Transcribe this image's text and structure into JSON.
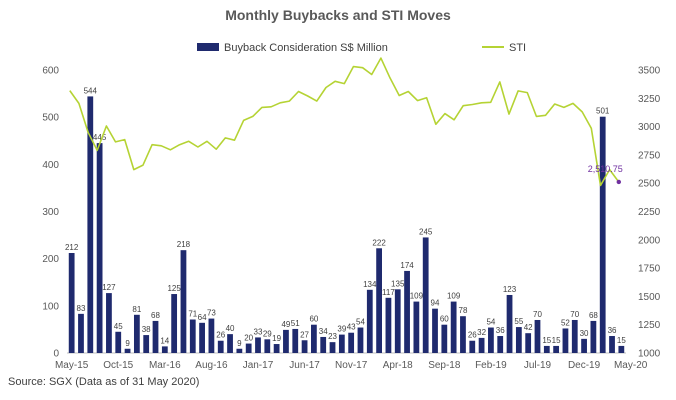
{
  "chart_data": {
    "type": "bar",
    "title": "Monthly Buybacks and STI Moves",
    "source": "Source: SGX (Data as of 31 May 2020)",
    "x_tick_labels": [
      "May-15",
      "Oct-15",
      "Mar-16",
      "Aug-16",
      "Jan-17",
      "Jun-17",
      "Nov-17",
      "Apr-18",
      "Sep-18",
      "Feb-19",
      "Jul-19",
      "Dec-19",
      "May-20"
    ],
    "left_axis": {
      "ylim": [
        0,
        600
      ],
      "ticks": [
        0,
        100,
        200,
        300,
        400,
        500,
        600
      ]
    },
    "right_axis": {
      "ylim": [
        1000,
        3500
      ],
      "ticks": [
        "1000",
        "1250",
        "1500",
        "1750",
        "2000",
        "2250",
        "2500",
        "2750",
        "3000",
        "3250",
        "3500"
      ]
    },
    "legend_placement": "top",
    "grid": false,
    "series": [
      {
        "name": "Buyback Consideration S$ Million",
        "kind": "bar",
        "color": "#1f2a6e",
        "values": [
          212,
          83,
          544,
          445,
          127,
          45,
          9,
          81,
          38,
          68,
          14,
          125,
          218,
          71,
          64,
          73,
          26,
          40,
          9,
          20,
          33,
          29,
          19,
          49,
          51,
          27,
          60,
          34,
          23,
          39,
          43,
          54,
          134,
          222,
          117,
          135,
          174,
          109,
          245,
          94,
          60,
          109,
          78,
          26,
          32,
          54,
          36,
          123,
          55,
          42,
          70,
          15,
          15,
          52,
          70,
          30,
          68,
          501,
          36,
          15
        ],
        "labels": [
          "212",
          "83",
          "544",
          "445",
          "127",
          "45",
          "9",
          "81",
          "38",
          "68",
          "14",
          "125",
          "218",
          "71",
          "64",
          "73",
          "26",
          "40",
          "9",
          "20",
          "33",
          "29",
          "19",
          "49",
          "51",
          "27",
          "60",
          "34",
          "23",
          "39",
          "43",
          "54",
          "134",
          "222",
          "117",
          "135",
          "174",
          "109",
          "245",
          "94",
          "60",
          "109",
          "78",
          "26",
          "32",
          "54",
          "36",
          "123",
          "55",
          "42",
          "70",
          "15",
          "15",
          "52",
          "70",
          "30",
          "68",
          "501",
          "36",
          "15"
        ]
      },
      {
        "name": "STI",
        "kind": "line",
        "color": "#b5d334",
        "values": [
          3318,
          3205,
          2950,
          2790,
          3005,
          2865,
          2885,
          2620,
          2660,
          2840,
          2830,
          2795,
          2840,
          2870,
          2820,
          2870,
          2800,
          2900,
          2880,
          3055,
          3090,
          3170,
          3175,
          3210,
          3225,
          3310,
          3270,
          3225,
          3345,
          3400,
          3380,
          3530,
          3520,
          3460,
          3605,
          3430,
          3275,
          3310,
          3230,
          3255,
          3020,
          3115,
          3060,
          3185,
          3195,
          3210,
          3215,
          3395,
          3110,
          3315,
          3300,
          3090,
          3100,
          3200,
          3170,
          3205,
          3130,
          2985,
          2480,
          2620,
          2510.75
        ]
      }
    ],
    "annotations": [
      {
        "text": "2,510.75",
        "series": "STI",
        "x_index": 60,
        "value": 2510.75
      }
    ]
  }
}
